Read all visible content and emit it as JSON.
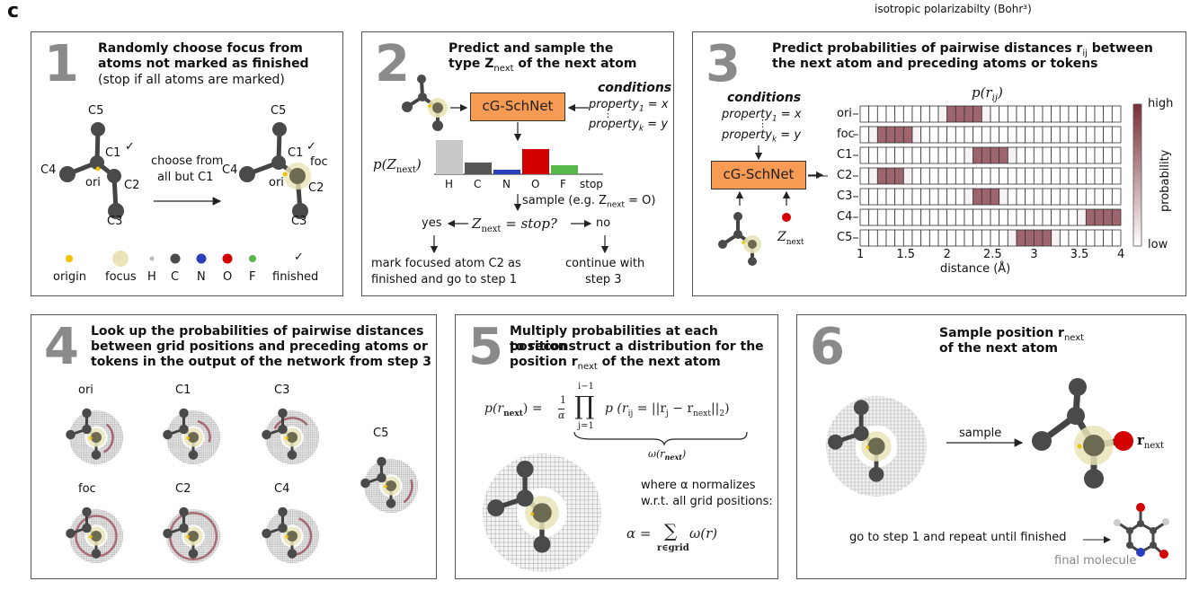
{
  "panel_label": "c",
  "top_note": "isotropic polarizabilty (Bohr³)",
  "p1": {
    "num": "1",
    "title1": "Randomly choose focus from",
    "title2": "atoms not marked as finished",
    "sub": "(stop if all atoms are marked)",
    "lbl_c5": "C5",
    "lbl_c1": "C1",
    "lbl_c4": "C4",
    "lbl_ori": "ori",
    "lbl_c2": "C2",
    "lbl_c3": "C3",
    "lbl_foc": "foc",
    "check": "✓",
    "arrow1": "choose from",
    "arrow2": "all but C1",
    "legend": [
      "origin",
      "focus",
      "H",
      "C",
      "N",
      "O",
      "F",
      "finished"
    ]
  },
  "p2": {
    "num": "2",
    "title1": "Predict and sample the",
    "title2": "type Z",
    "title2b": "next",
    "title2c": " of the next atom",
    "net": "cG-SchNet",
    "cond": "conditions",
    "prop1": "property",
    "prop1s": "1",
    "prop1v": " = x",
    "dots": "⋮",
    "propk": "property",
    "propks": "k",
    "propkv": " = y",
    "pz": "p(Z",
    "pzs": "next",
    "pzc": ")",
    "bars": [
      "H",
      "C",
      "N",
      "O",
      "F",
      "stop"
    ],
    "sample": "sample (e.g. Z",
    "samples": "next",
    "samplev": "= O)",
    "yes": "yes",
    "q": "Z",
    "qs": "next",
    "qv": " = stop?",
    "no": "no",
    "yes1": "mark focused atom C2 as",
    "yes2": "finished and go to step 1",
    "no1": "continue with",
    "no2": "step 3"
  },
  "p3": {
    "num": "3",
    "title1": "Predict probabilities of pairwise distances r",
    "title1s": "ij",
    "title1c": " between",
    "title2": "the next atom and preceding atoms or tokens",
    "cond": "conditions",
    "prop1": "property",
    "prop1s": "1",
    "prop1v": " = x",
    "dots": "⋮",
    "propk": "property",
    "propks": "k",
    "propkv": " = y",
    "net": "cG-SchNet",
    "znext": "Z",
    "znexts": "next",
    "prij": "p(r",
    "prijs": "ij",
    "prijc": ")",
    "rows": [
      "ori",
      "foc",
      "C1",
      "C2",
      "C3",
      "C4",
      "C5"
    ],
    "xticks": [
      "1",
      "1.5",
      "2",
      "2.5",
      "3",
      "3.5",
      "4"
    ],
    "xlabel": "distance (Å)",
    "cb_high": "high",
    "cb_low": "low",
    "cb_label": "probability"
  },
  "p4": {
    "num": "4",
    "title1": "Look up the probabilities of pairwise distances",
    "title2": "between grid positions and preceding atoms or",
    "title3": "tokens in the output of the network from step 3",
    "labels": [
      "ori",
      "C1",
      "C3",
      "C5",
      "foc",
      "C2",
      "C4"
    ]
  },
  "p5": {
    "num": "5",
    "title1": "Multiply probabilities at each position",
    "title2": "to reconstruct a distribution for the",
    "title3": "position r",
    "title3s": "next",
    "title3c": " of the next atom",
    "eq": "p(r_next) = 1/α ∏_{j=1}^{i-1} p(r_ij = ||r_j − r_next||₂)",
    "eq_lhs": "p(r",
    "eq_lhs_s": "next",
    "eq_lhs_c": ") =",
    "eq_frac_top": "1",
    "eq_frac_bot": "α",
    "eq_prod_top": "i−1",
    "eq_prod": "∏",
    "eq_prod_bot": "j=1",
    "eq_rhs": "p (r",
    "eq_rhs_s": "ij",
    "eq_rhs_c": " = ||r",
    "eq_rhs_j": "j",
    "eq_rhs_d": " − r",
    "eq_rhs_n": "next",
    "eq_rhs_e": "||",
    "eq_rhs_2": "2",
    "eq_rhs_f": ")",
    "omega": "ω(r",
    "omegas": "next",
    "omegac": ")",
    "where1": "where α normalizes",
    "where2": "w.r.t. all grid positions:",
    "alpha": "α =",
    "sum": "∑",
    "sumsub": "r∈grid",
    "alpha_rhs": "ω(r)"
  },
  "p6": {
    "num": "6",
    "title1": "Sample position r",
    "title1s": "next",
    "title2": "of the next atom",
    "sample": "sample",
    "rnext": "r",
    "rnexts": "next",
    "goto": "go to step 1 and repeat until finished",
    "final": "final molecule"
  },
  "colors": {
    "carbon": "#4a4a4a",
    "focus": "#d9d6a0",
    "origin": "#f2c200",
    "nitrogen": "#2a3fc0",
    "oxygen": "#d20000",
    "fluorine": "#56b848",
    "box": "#f79a53",
    "heat": "#7b2d3a"
  }
}
